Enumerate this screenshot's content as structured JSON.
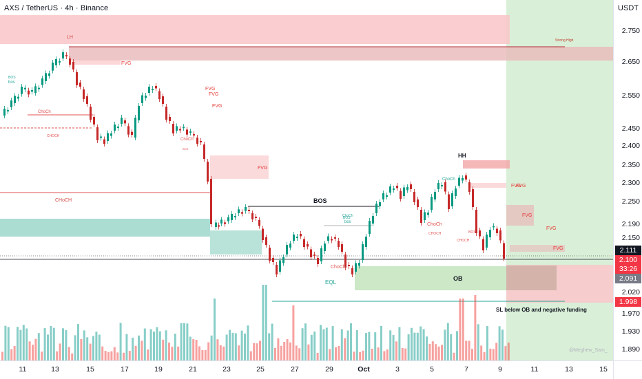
{
  "header": {
    "title": "AXS / TetherUS · 4h · Binance",
    "currency": "USDT"
  },
  "price_axis": {
    "labels": [
      "2.750",
      "2.650",
      "2.550",
      "2.450",
      "2.400",
      "2.350",
      "2.300",
      "2.250",
      "2.190",
      "2.150",
      "2.111",
      "2.100",
      "2.091",
      "2.020",
      "1.998",
      "1.970",
      "1.930",
      "1.890"
    ],
    "current_price": "2.111",
    "countdown_price": "2.100",
    "countdown": "33:26",
    "marker_price": "2.091",
    "sl_price": "1.998"
  },
  "time_axis": {
    "labels": [
      "11",
      "13",
      "15",
      "17",
      "19",
      "21",
      "23",
      "25",
      "27",
      "29",
      "Oct",
      "3",
      "5",
      "7",
      "9",
      "11",
      "13",
      "15"
    ]
  },
  "annotations": {
    "lh": "LH",
    "strong_high": "Strong High",
    "fvg": "FVG",
    "bos_big": "BOS",
    "bos_small": "BOS",
    "bos_lower": "bos",
    "choch": "ChoCh",
    "choch_caps": "CHoCH",
    "choch_upper": "CHOCH",
    "hh": "HH",
    "ob": "OB",
    "eql": "EQL",
    "sl_note": "SL below OB and negative funding",
    "watermark": "@Meghew_Sam_"
  },
  "colors": {
    "bull": "#26a69a",
    "bear": "#ef5350",
    "bull_candle": "#089981",
    "bear_candle": "#c62828",
    "price_tag_current": "#131722",
    "price_tag_countdown": "#f23645",
    "price_tag_marker": "#787b86",
    "price_tag_sl": "#f23645"
  }
}
